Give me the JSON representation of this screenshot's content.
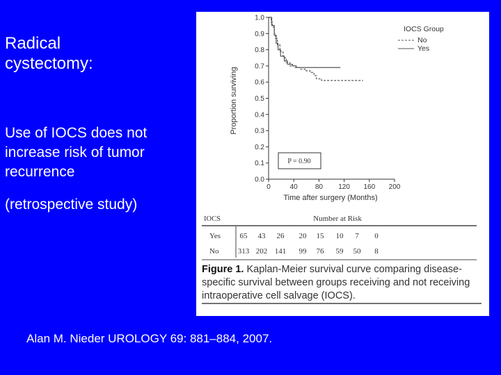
{
  "slide": {
    "title": "Radical cystectomy:",
    "bullet": "Use of IOCS does not increase risk of tumor recurrence",
    "note": "(retrospective study)",
    "citation": "Alan M. Nieder UROLOGY 69: 881–884, 2007."
  },
  "figure": {
    "caption_label": "Figure 1.",
    "caption_text": "Kaplan-Meier survival curve comparing disease-specific survival between groups receiving and not receiving intraoperative cell salvage (IOCS).",
    "risk_table": {
      "header_left": "IOCS",
      "header_right": "Number at Risk",
      "rows": [
        {
          "label": "Yes",
          "values": [
            "65",
            "43",
            "26",
            "20",
            "15",
            "10",
            "7",
            "0"
          ]
        },
        {
          "label": "No",
          "values": [
            "313",
            "202",
            "141",
            "99",
            "76",
            "59",
            "50",
            "8"
          ]
        }
      ]
    }
  },
  "chart_data": {
    "type": "line",
    "title": "",
    "xlabel": "Time after surgery (Months)",
    "ylabel": "Proportion surviving",
    "xlim": [
      0,
      200
    ],
    "ylim": [
      0,
      1.0
    ],
    "xticks": [
      "0",
      "40",
      "80",
      "120",
      "160",
      "200"
    ],
    "yticks": [
      "0.0",
      "0.1",
      "0.2",
      "0.3",
      "0.4",
      "0.5",
      "0.6",
      "0.7",
      "0.8",
      "0.9",
      "1.0"
    ],
    "legend": {
      "title": "IOCS Group",
      "position": "top-right"
    },
    "annotation": "P = 0.90",
    "grid": false,
    "series": [
      {
        "name": "No",
        "style": "dashed",
        "color": "#555555",
        "points": [
          [
            0,
            1.0
          ],
          [
            4,
            0.97
          ],
          [
            6,
            0.94
          ],
          [
            9,
            0.9
          ],
          [
            11,
            0.87
          ],
          [
            14,
            0.83
          ],
          [
            18,
            0.79
          ],
          [
            23,
            0.75
          ],
          [
            28,
            0.72
          ],
          [
            34,
            0.7
          ],
          [
            42,
            0.69
          ],
          [
            50,
            0.68
          ],
          [
            58,
            0.67
          ],
          [
            66,
            0.66
          ],
          [
            72,
            0.64
          ],
          [
            76,
            0.62
          ],
          [
            84,
            0.61
          ],
          [
            150,
            0.61
          ]
        ]
      },
      {
        "name": "Yes",
        "style": "solid",
        "color": "#555555",
        "points": [
          [
            0,
            1.0
          ],
          [
            5,
            0.95
          ],
          [
            9,
            0.89
          ],
          [
            12,
            0.84
          ],
          [
            15,
            0.8
          ],
          [
            19,
            0.76
          ],
          [
            25,
            0.73
          ],
          [
            30,
            0.71
          ],
          [
            38,
            0.7
          ],
          [
            44,
            0.69
          ],
          [
            114,
            0.69
          ]
        ]
      }
    ]
  }
}
